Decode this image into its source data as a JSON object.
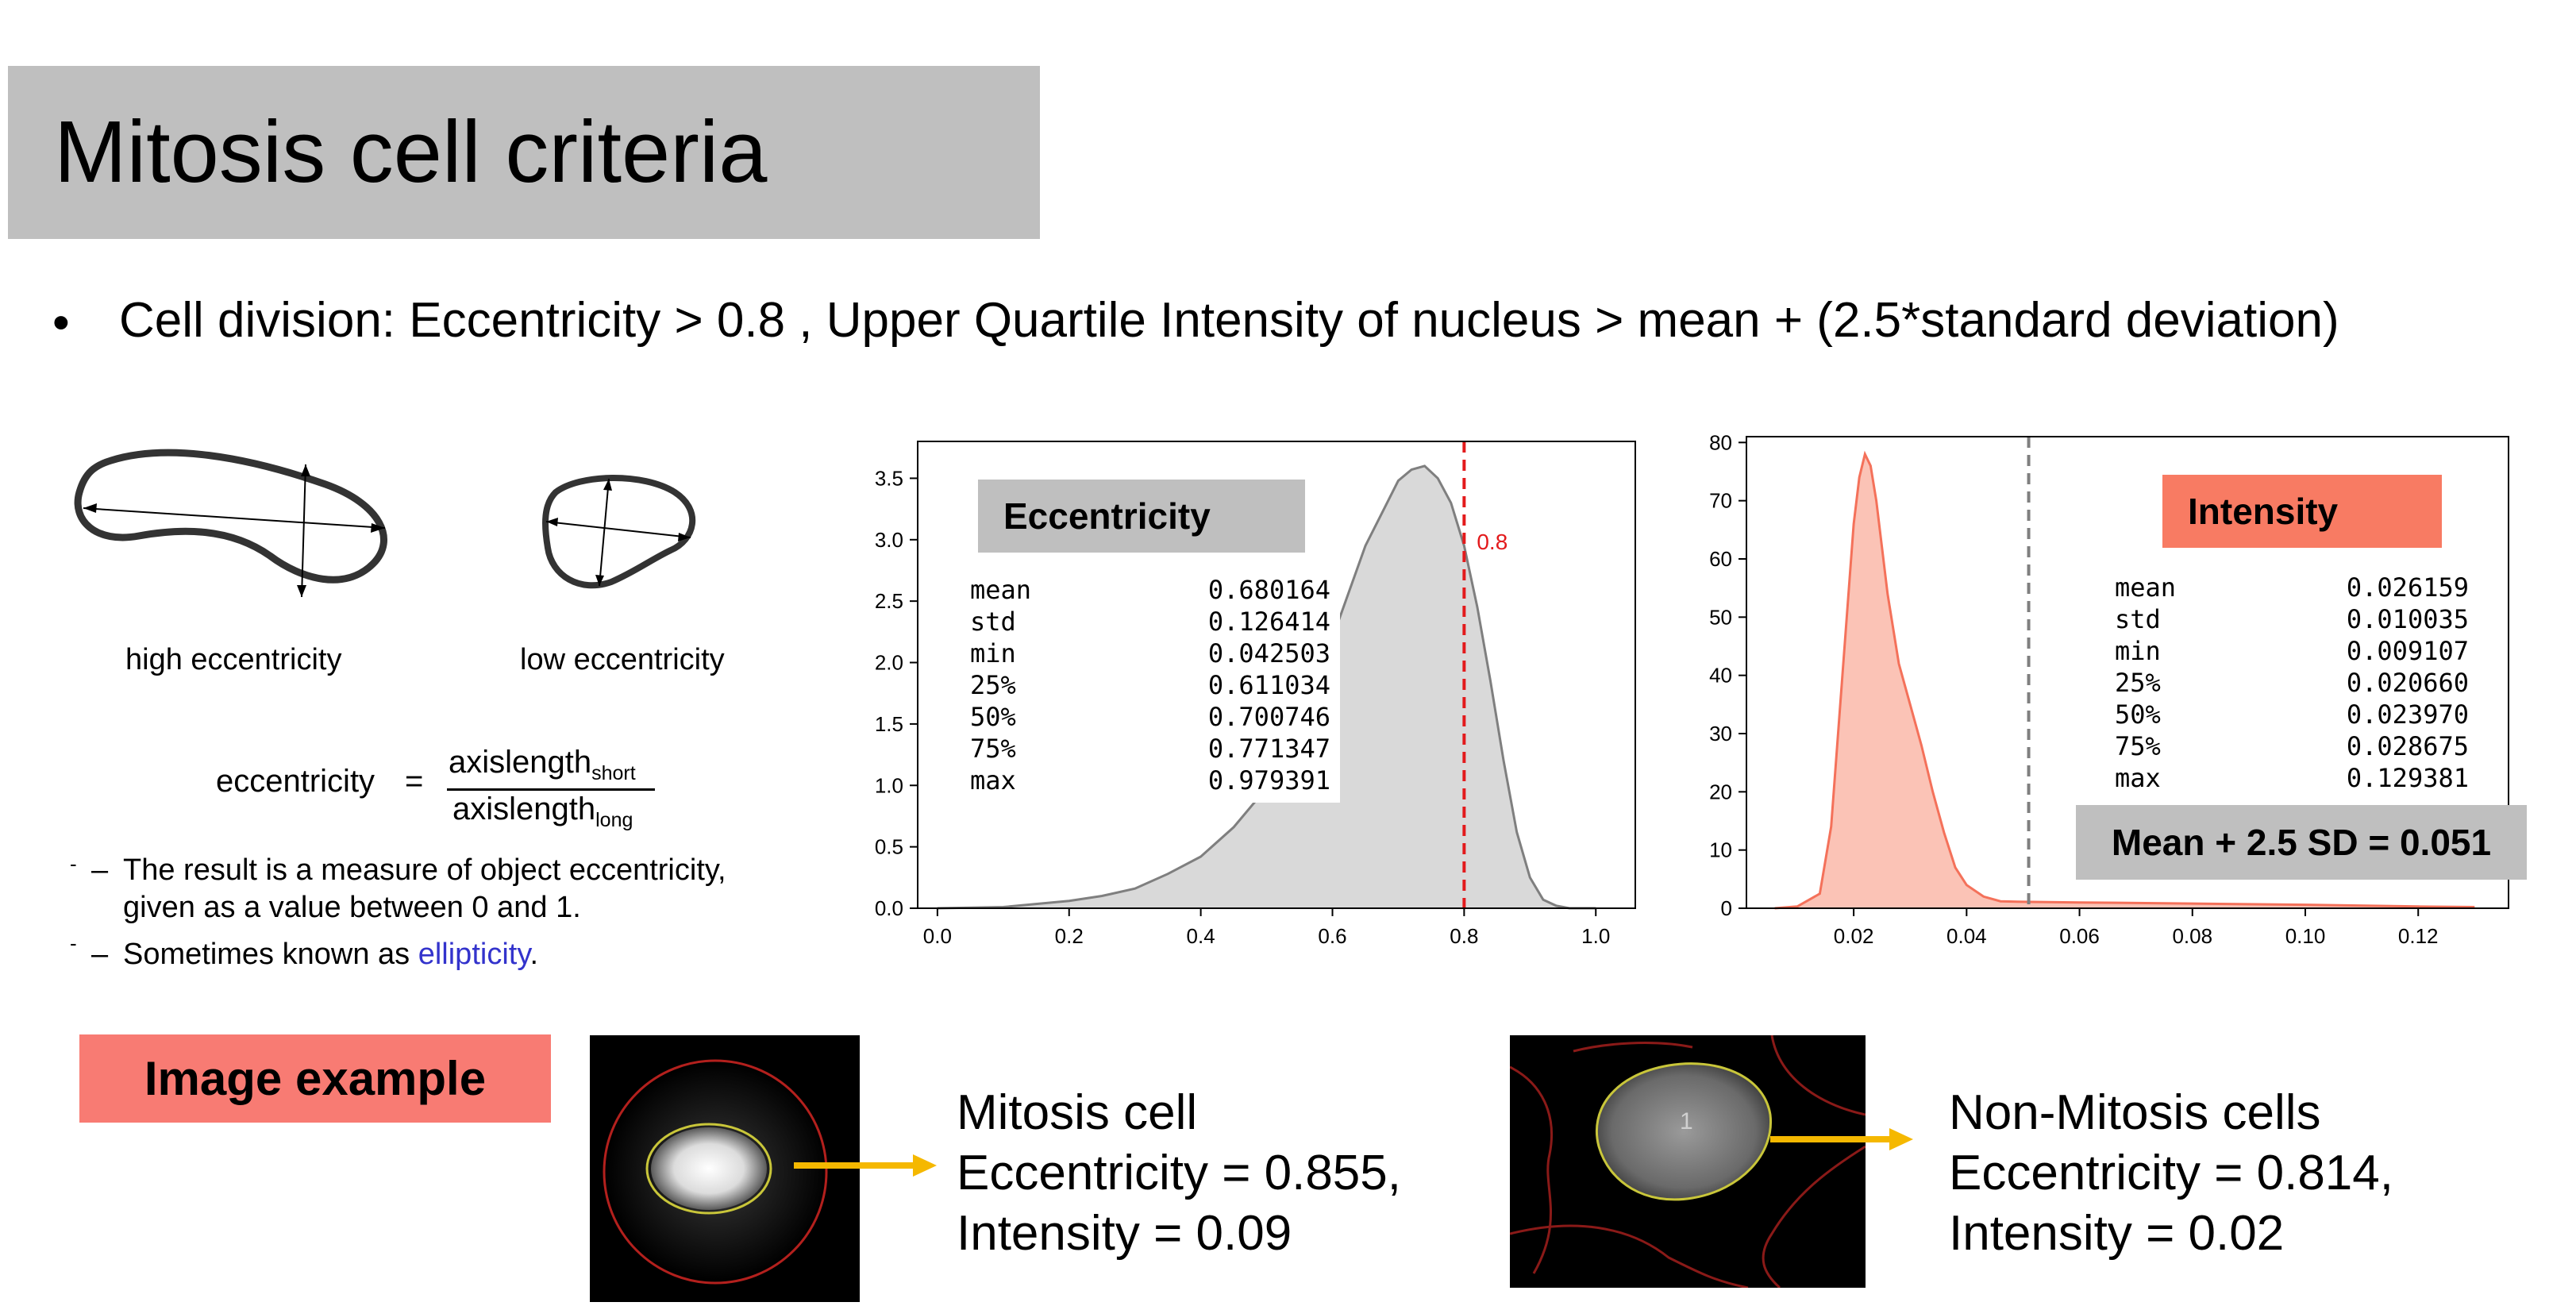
{
  "title": "Mitosis cell criteria",
  "bullet": "Cell division: Eccentricity > 0.8 , Upper Quartile Intensity of nucleus > mean + (2.5*standard deviation)",
  "diagram": {
    "high_label": "high eccentricity",
    "low_label": "low eccentricity",
    "formula_lhs": "eccentricity",
    "formula_eq": "=",
    "numerator": "axislength",
    "numerator_sub": "short",
    "denominator": "axislength",
    "denominator_sub": "long",
    "desc_line1": "The result is a measure of object eccentricity,",
    "desc_line2": "given as a value between 0 and 1.",
    "desc_line3_prefix": "Sometimes known as ",
    "desc_line3_link": "ellipticity",
    "desc_line3_suffix": ".",
    "dash": "–",
    "tick_mark": "-"
  },
  "chart_data": [
    {
      "type": "area",
      "label_box": "Eccentricity",
      "x": [
        0.0,
        0.1,
        0.2,
        0.25,
        0.3,
        0.35,
        0.4,
        0.45,
        0.5,
        0.55,
        0.6,
        0.65,
        0.7,
        0.72,
        0.74,
        0.76,
        0.78,
        0.8,
        0.82,
        0.84,
        0.86,
        0.88,
        0.9,
        0.92,
        0.94,
        0.96,
        1.0
      ],
      "y": [
        0.0,
        0.01,
        0.06,
        0.1,
        0.16,
        0.28,
        0.42,
        0.66,
        0.98,
        1.5,
        2.2,
        2.95,
        3.48,
        3.57,
        3.6,
        3.5,
        3.3,
        2.95,
        2.45,
        1.85,
        1.2,
        0.62,
        0.25,
        0.07,
        0.02,
        0.0,
        0.0
      ],
      "xlim": [
        -0.03,
        1.06
      ],
      "ylim": [
        0,
        3.8
      ],
      "xticks": [
        "0.0",
        "0.2",
        "0.4",
        "0.6",
        "0.8",
        "1.0"
      ],
      "yticks": [
        "0.0",
        "0.5",
        "1.0",
        "1.5",
        "2.0",
        "2.5",
        "3.0",
        "3.5"
      ],
      "threshold": 0.8,
      "threshold_label": "0.8",
      "fill_color": "#d9d9d9",
      "line_color": "#7f7f7f",
      "threshold_color": "#e31a1c",
      "label_box_color": "#bfbfbf",
      "stats": [
        {
          "name": "mean",
          "value": "0.680164"
        },
        {
          "name": "std",
          "value": "0.126414"
        },
        {
          "name": "min",
          "value": "0.042503"
        },
        {
          "name": "25%",
          "value": "0.611034"
        },
        {
          "name": "50%",
          "value": "0.700746"
        },
        {
          "name": "75%",
          "value": "0.771347"
        },
        {
          "name": "max",
          "value": "0.979391"
        }
      ]
    },
    {
      "type": "area",
      "label_box": "Intensity",
      "x": [
        0.006,
        0.01,
        0.014,
        0.016,
        0.018,
        0.02,
        0.021,
        0.022,
        0.023,
        0.024,
        0.025,
        0.026,
        0.028,
        0.03,
        0.032,
        0.034,
        0.036,
        0.038,
        0.04,
        0.043,
        0.046,
        0.05,
        0.06,
        0.08,
        0.1,
        0.12,
        0.13
      ],
      "y": [
        0,
        0.3,
        2.5,
        14,
        40,
        66,
        74,
        78,
        76,
        70,
        62,
        54,
        42,
        35,
        28,
        20,
        13,
        7,
        4,
        2,
        1.2,
        1.1,
        1.0,
        0.8,
        0.6,
        0.3,
        0.2
      ],
      "xlim": [
        0.001,
        0.136
      ],
      "ylim": [
        0,
        81
      ],
      "xticks": [
        "0.02",
        "0.04",
        "0.06",
        "0.08",
        "0.10",
        "0.12"
      ],
      "yticks": [
        "0",
        "10",
        "20",
        "30",
        "40",
        "50",
        "60",
        "70",
        "80"
      ],
      "threshold": 0.051,
      "fill_color": "#fbc3b6",
      "line_color": "#f4715a",
      "threshold_color": "#7f7f7f",
      "label_box_color": "#f87b63",
      "stats": [
        {
          "name": "mean",
          "value": "0.026159"
        },
        {
          "name": "std",
          "value": "0.010035"
        },
        {
          "name": "min",
          "value": "0.009107"
        },
        {
          "name": "25%",
          "value": "0.020660"
        },
        {
          "name": "50%",
          "value": "0.023970"
        },
        {
          "name": "75%",
          "value": "0.028675"
        },
        {
          "name": "max",
          "value": "0.129381"
        }
      ],
      "threshold_box": "Mean + 2.5 SD = 0.051"
    }
  ],
  "examples": {
    "heading": "Image example",
    "heading_color": "#f87b73",
    "arrow_color": "#f5b800",
    "mitosis": {
      "line1": "Mitosis cell",
      "line2": "Eccentricity = 0.855,",
      "line3": "Intensity = 0.09"
    },
    "non_mitosis": {
      "line1": "Non-Mitosis cells",
      "line2": "Eccentricity = 0.814,",
      "line3": "Intensity = 0.02",
      "cell_label": "1"
    }
  }
}
